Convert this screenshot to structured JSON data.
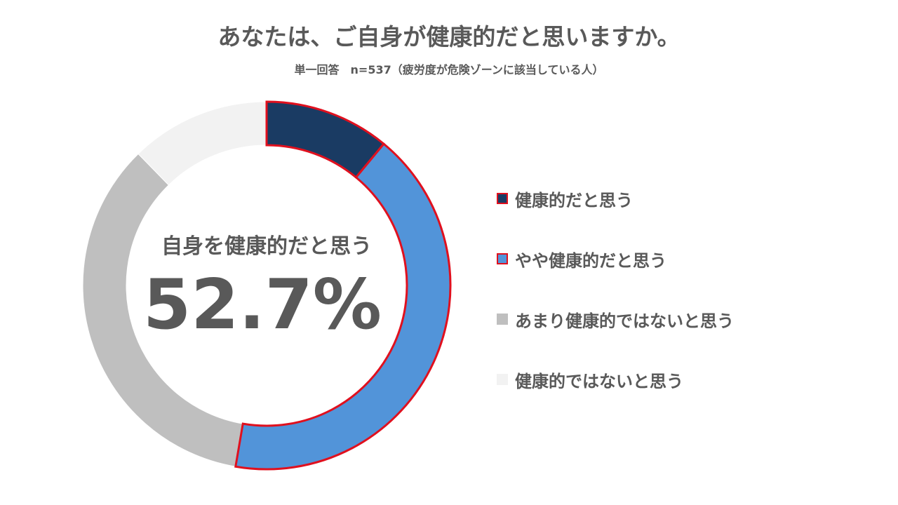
{
  "chart_data": {
    "type": "pie",
    "variant": "donut",
    "title": "あなたは、ご自身が健康的だと思いますか。",
    "subtitle": "単一回答　n=537（疲労度が危険ゾーンに該当している人）",
    "center_label": "自身を健康的だと思う",
    "center_value": "52.7%",
    "legend_position": "right",
    "categories": [
      "健康的だと思う",
      "やや健康的だと思う",
      "あまり健康的ではないと思う",
      "健康的ではないと思う"
    ],
    "values": [
      11.0,
      41.7,
      35.0,
      12.3
    ],
    "colors": [
      "#1a3b63",
      "#5294d9",
      "#bfbfbf",
      "#f2f2f2"
    ],
    "highlight_color": "#e0101e"
  }
}
